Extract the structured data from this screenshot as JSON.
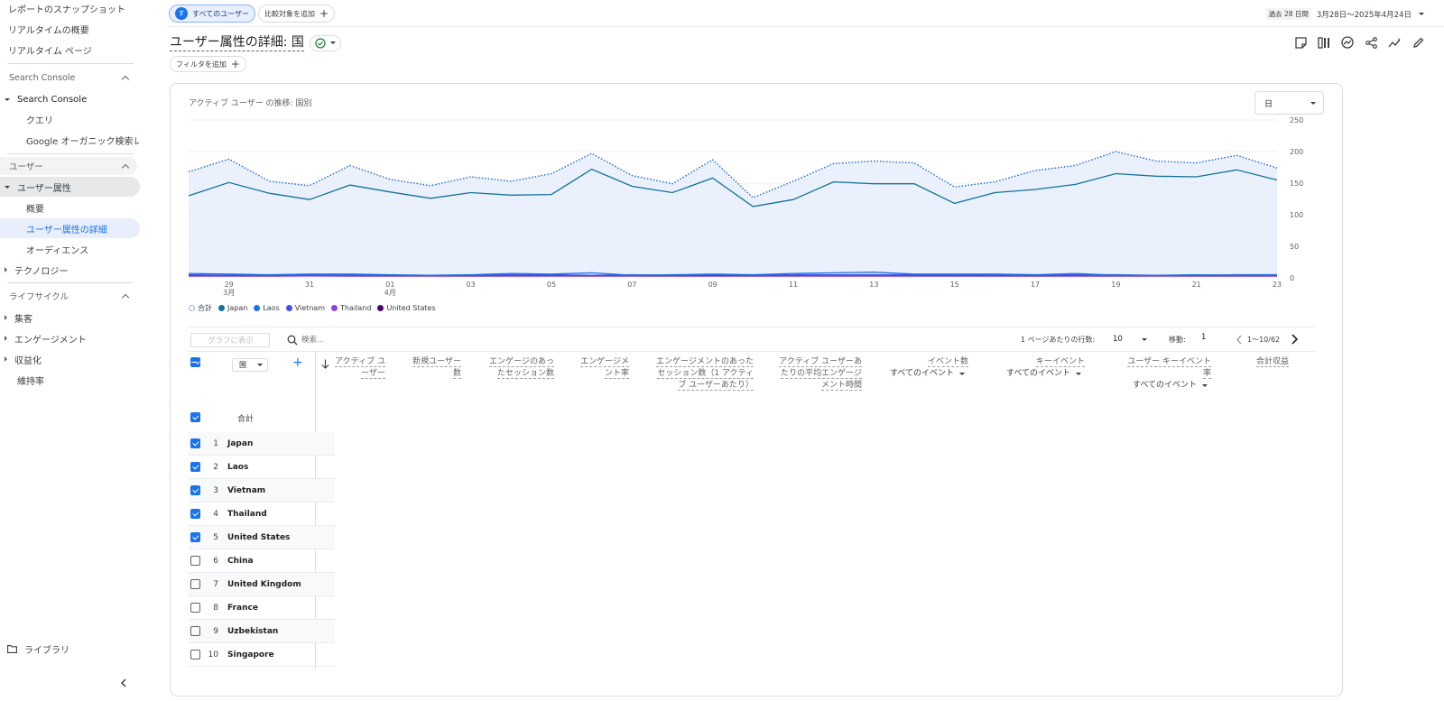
{
  "sidebar": {
    "top_items": [
      "レポートのスナップショット",
      "リアルタイムの概要",
      "リアルタイム ページ"
    ],
    "sections": [
      {
        "label": "Search Console"
      },
      {
        "label": "ユーザー"
      },
      {
        "label": "ライフサイクル"
      }
    ],
    "search_console": {
      "group": "Search Console",
      "items": [
        "クエリ",
        "Google オーガニック検索レ..."
      ]
    },
    "users": {
      "group": "ユーザー属性",
      "items": [
        "概要",
        "ユーザー属性の詳細",
        "オーディエンス"
      ],
      "collapsed": "テクノロジー"
    },
    "lifecycle": [
      "集客",
      "エンゲージメント",
      "収益化",
      "維持率"
    ],
    "library": "ライブラリ"
  },
  "topbar": {
    "segment_avatar": "す",
    "segment_label": "すべてのユーザー",
    "compare_label": "比較対象を追加",
    "date_prefix": "過去 28 日間",
    "date_range": "3月28日～2025年4月24日"
  },
  "page": {
    "title": "ユーザー属性の詳細: 国",
    "filter_label": "フィルタを追加"
  },
  "chart_card": {
    "title": "アクティブ ユーザー の推移: 国別",
    "granularity": "日"
  },
  "chart_data": {
    "type": "line",
    "x": [
      "3/28",
      "3/29",
      "3/30",
      "3/31",
      "4/01",
      "4/02",
      "4/03",
      "4/04",
      "4/05",
      "4/06",
      "4/07",
      "4/08",
      "4/09",
      "4/10",
      "4/11",
      "4/12",
      "4/13",
      "4/14",
      "4/15",
      "4/16",
      "4/17",
      "4/18",
      "4/19",
      "4/20",
      "4/21",
      "4/22",
      "4/23",
      "4/24"
    ],
    "x_tick_labels": [
      {
        "day": "29",
        "month": "3月"
      },
      {
        "day": "31",
        "month": ""
      },
      {
        "day": "01",
        "month": "4月"
      },
      {
        "day": "03",
        "month": ""
      },
      {
        "day": "05",
        "month": ""
      },
      {
        "day": "07",
        "month": ""
      },
      {
        "day": "09",
        "month": ""
      },
      {
        "day": "11",
        "month": ""
      },
      {
        "day": "13",
        "month": ""
      },
      {
        "day": "15",
        "month": ""
      },
      {
        "day": "17",
        "month": ""
      },
      {
        "day": "19",
        "month": ""
      },
      {
        "day": "21",
        "month": ""
      },
      {
        "day": "23",
        "month": ""
      }
    ],
    "y_ticks": [
      "250",
      "200",
      "150",
      "100",
      "50",
      "0"
    ],
    "ylim": [
      0,
      250
    ],
    "series": [
      {
        "name": "合計",
        "color": "#1967d2",
        "style": "dotted",
        "values": [
          168,
          188,
          153,
          146,
          178,
          156,
          146,
          160,
          153,
          165,
          197,
          162,
          149,
          187,
          127,
          153,
          181,
          185,
          182,
          144,
          152,
          170,
          178,
          200,
          185,
          182,
          194,
          174
        ]
      },
      {
        "name": "Japan",
        "color": "#12739a",
        "style": "solid",
        "values": [
          130,
          151,
          134,
          124,
          147,
          136,
          126,
          135,
          131,
          132,
          172,
          145,
          135,
          158,
          113,
          124,
          152,
          149,
          149,
          118,
          135,
          140,
          148,
          165,
          161,
          160,
          171,
          155
        ]
      },
      {
        "name": "Laos",
        "color": "#1a73e8",
        "style": "solid",
        "values": [
          7,
          6,
          5,
          6,
          6,
          5,
          4,
          5,
          7,
          6,
          8,
          4,
          5,
          6,
          5,
          7,
          8,
          9,
          6,
          6,
          6,
          5,
          7,
          4,
          4,
          5,
          4,
          5
        ]
      },
      {
        "name": "Vietnam",
        "color": "#3f51e8",
        "style": "solid",
        "values": [
          5,
          4,
          4,
          4,
          5,
          4,
          4,
          4,
          5,
          5,
          4,
          5,
          4,
          4,
          4,
          5,
          5,
          5,
          5,
          4,
          5,
          4,
          5,
          5,
          4,
          4,
          5,
          5
        ]
      },
      {
        "name": "Thailand",
        "color": "#8e44d8",
        "style": "solid",
        "values": [
          4,
          4,
          4,
          3,
          4,
          4,
          4,
          4,
          4,
          4,
          4,
          4,
          4,
          5,
          4,
          4,
          4,
          4,
          4,
          4,
          4,
          4,
          4,
          4,
          4,
          4,
          4,
          4
        ]
      },
      {
        "name": "United States",
        "color": "#4a0072",
        "style": "solid",
        "values": [
          3,
          3,
          3,
          3,
          3,
          3,
          3,
          3,
          3,
          3,
          3,
          3,
          3,
          3,
          3,
          3,
          3,
          3,
          3,
          3,
          3,
          3,
          3,
          3,
          3,
          3,
          3,
          3
        ]
      }
    ]
  },
  "table": {
    "show_in_chart": "グラフに表示",
    "search_placeholder": "検索...",
    "rows_per_page_label": "1 ページあたりの行数:",
    "rows_per_page": "10",
    "goto_label": "移動:",
    "goto_value": "1",
    "page_info": "1〜10/62",
    "dimension": "国",
    "columns": [
      {
        "line1": "アクティブ ユ",
        "line2": "ーザー",
        "sub": ""
      },
      {
        "line1": "新規ユーザー",
        "line2": "数",
        "sub": ""
      },
      {
        "line1": "エンゲージのあっ",
        "line2": "たセッション数",
        "sub": ""
      },
      {
        "line1": "エンゲージメ",
        "line2": "ント率",
        "sub": ""
      },
      {
        "line1": "エンゲージメントのあった",
        "line2": "セッション数（1 アクティ",
        "line3": "ブ ユーザーあたり）",
        "sub": ""
      },
      {
        "line1": "アクティブ ユーザーあ",
        "line2": "たりの平均エンゲージ",
        "line3": "メント時間",
        "sub": ""
      },
      {
        "line1": "イベント数",
        "line2": "",
        "sub": "すべてのイベント"
      },
      {
        "line1": "キーイベント",
        "line2": "",
        "sub": "すべてのイベント"
      },
      {
        "line1": "ユーザー キーイベント",
        "line2": "率",
        "sub": "すべてのイベント"
      },
      {
        "line1": "合計収益",
        "line2": "",
        "sub": ""
      }
    ],
    "total_label": "合計",
    "rows": [
      {
        "idx": "1",
        "name": "Japan",
        "checked": true
      },
      {
        "idx": "2",
        "name": "Laos",
        "checked": true
      },
      {
        "idx": "3",
        "name": "Vietnam",
        "checked": true
      },
      {
        "idx": "4",
        "name": "Thailand",
        "checked": true
      },
      {
        "idx": "5",
        "name": "United States",
        "checked": true
      },
      {
        "idx": "6",
        "name": "China",
        "checked": false
      },
      {
        "idx": "7",
        "name": "United Kingdom",
        "checked": false
      },
      {
        "idx": "8",
        "name": "France",
        "checked": false
      },
      {
        "idx": "9",
        "name": "Uzbekistan",
        "checked": false
      },
      {
        "idx": "10",
        "name": "Singapore",
        "checked": false
      }
    ]
  }
}
